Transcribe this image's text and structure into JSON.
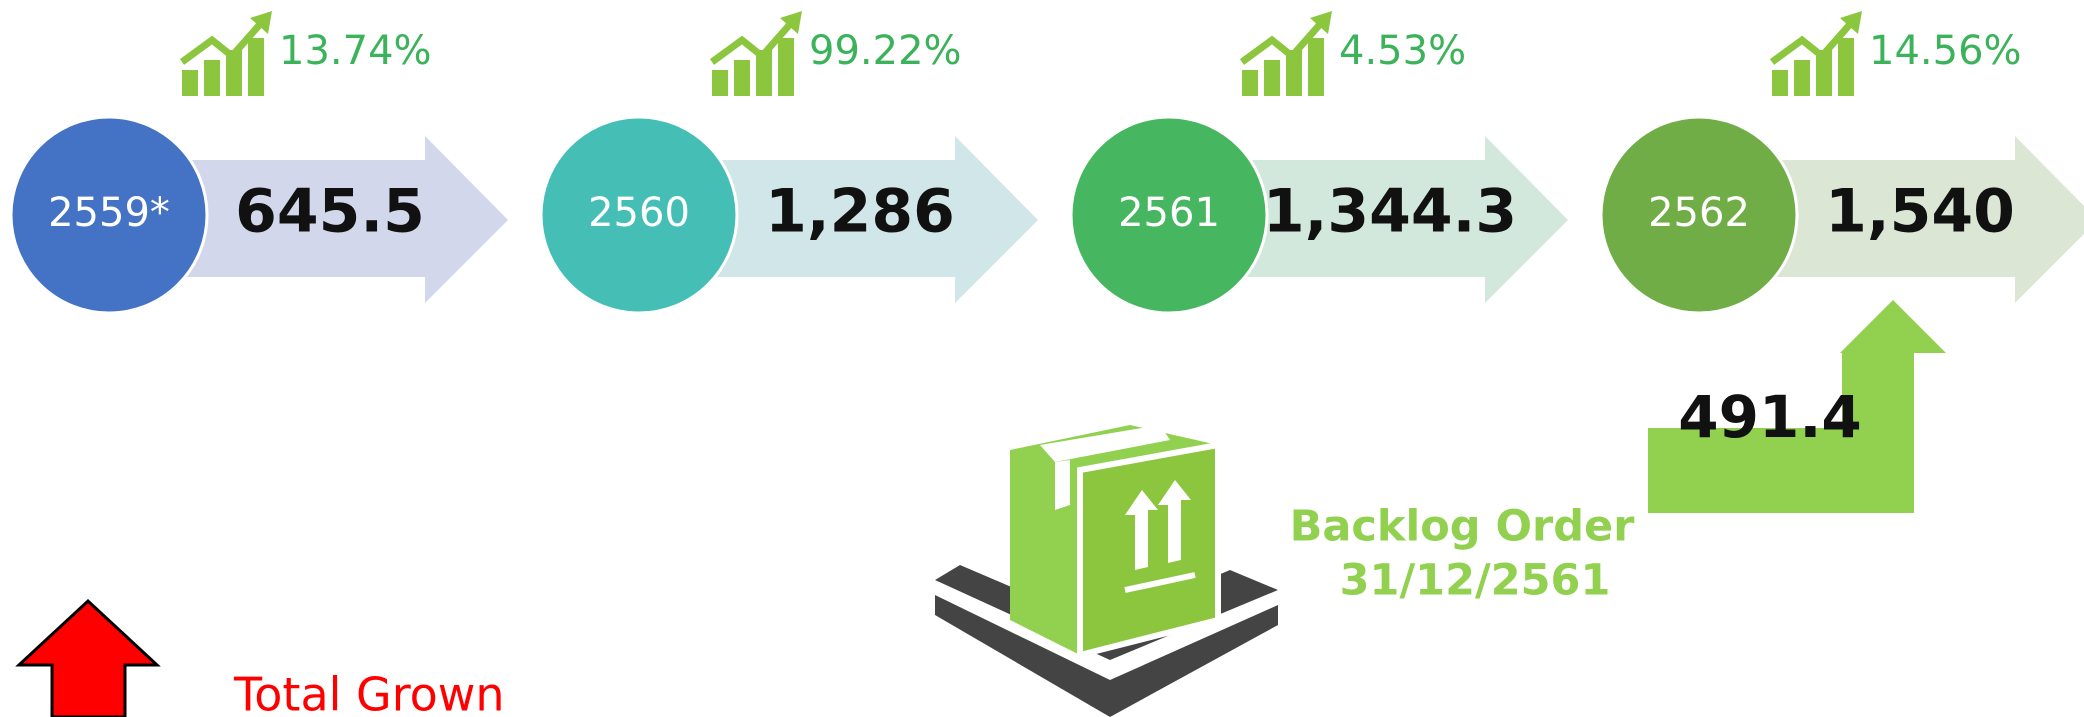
{
  "items": [
    {
      "year": "2559*",
      "value": "645.5",
      "growth": "13.74%"
    },
    {
      "year": "2560",
      "value": "1,286",
      "growth": "99.22%"
    },
    {
      "year": "2561",
      "value": "1,344.3",
      "growth": "4.53%"
    },
    {
      "year": "2562",
      "value": "1,540",
      "growth": "14.56%"
    }
  ],
  "backlog": {
    "value": "491.4",
    "label": "Backlog Order",
    "date": "31/12/2561"
  },
  "legend": {
    "label": "Total Grown"
  }
}
